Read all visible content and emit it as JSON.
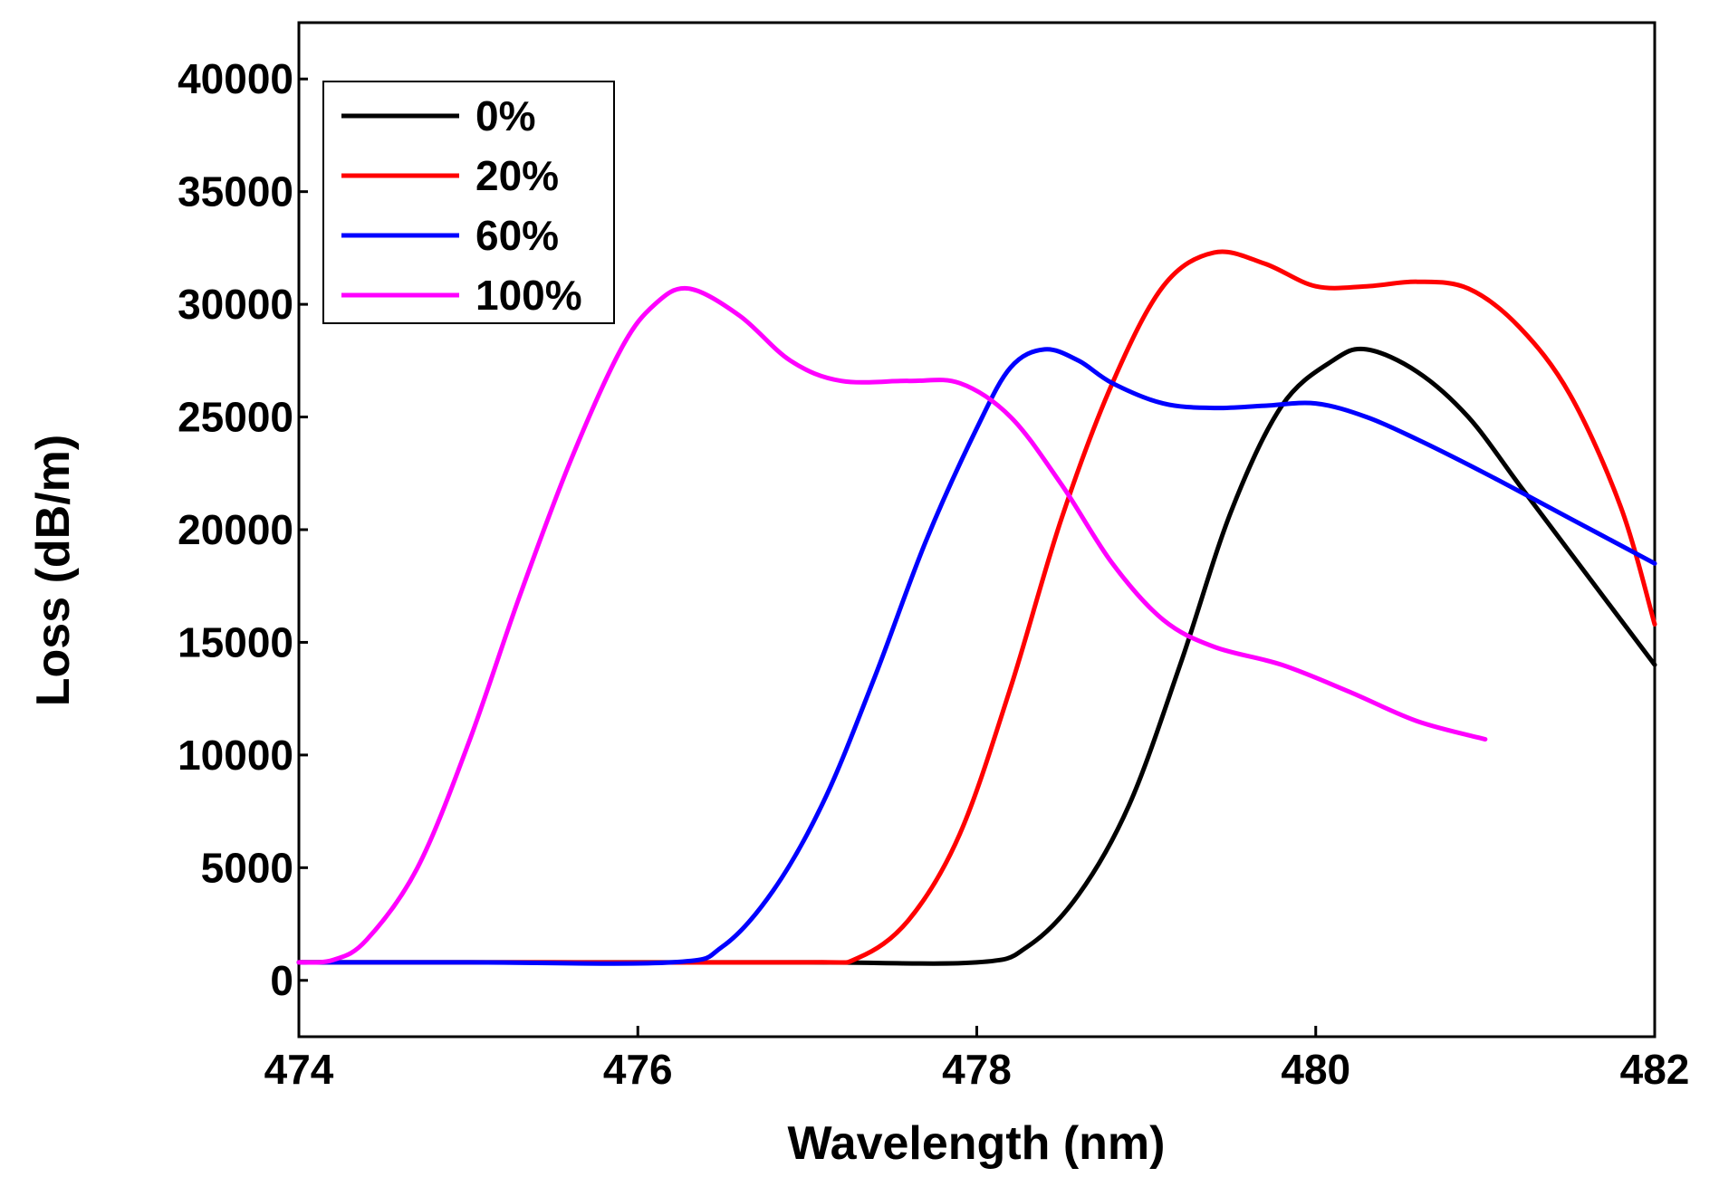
{
  "chart_data": {
    "type": "line",
    "title": "",
    "xlabel": "Wavelength (nm)",
    "ylabel": "Loss (dB/m)",
    "xlim": [
      474,
      482
    ],
    "ylim": [
      -2500,
      42500
    ],
    "xticks": [
      474,
      476,
      478,
      480,
      482
    ],
    "xtick_labels": [
      "474",
      "476",
      "478",
      "480",
      "482"
    ],
    "yticks": [
      0,
      5000,
      10000,
      15000,
      20000,
      25000,
      30000,
      35000,
      40000
    ],
    "ytick_labels": [
      "0",
      "5000",
      "10000",
      "15000",
      "20000",
      "25000",
      "30000",
      "35000",
      "40000"
    ],
    "grid": false,
    "legend_position": "top-left",
    "series": [
      {
        "name": "0%",
        "color": "#000000",
        "x": [
          474.0,
          475.5,
          477.0,
          478.0,
          478.3,
          478.6,
          478.9,
          479.2,
          479.5,
          479.8,
          480.1,
          480.3,
          480.6,
          480.9,
          481.2,
          481.5,
          482.0
        ],
        "y": [
          800,
          800,
          800,
          800,
          1500,
          3800,
          7800,
          14000,
          20800,
          25500,
          27500,
          28000,
          27000,
          25000,
          22000,
          19000,
          14000
        ]
      },
      {
        "name": "20%",
        "color": "#ff0000",
        "x": [
          474.0,
          475.5,
          477.0,
          477.3,
          477.6,
          477.9,
          478.2,
          478.5,
          478.8,
          479.1,
          479.4,
          479.7,
          480.0,
          480.3,
          480.6,
          480.9,
          481.2,
          481.5,
          481.8,
          482.0
        ],
        "y": [
          800,
          800,
          800,
          1000,
          2700,
          6500,
          13000,
          20500,
          26500,
          30800,
          32300,
          31800,
          30800,
          30800,
          31000,
          30700,
          29000,
          26000,
          21000,
          15800
        ]
      },
      {
        "name": "60%",
        "color": "#0000ff",
        "x": [
          474.0,
          475.0,
          476.2,
          476.5,
          476.8,
          477.1,
          477.4,
          477.7,
          478.0,
          478.2,
          478.4,
          478.6,
          478.8,
          479.1,
          479.4,
          479.7,
          480.0,
          480.3,
          480.6,
          481.0,
          481.5,
          482.0
        ],
        "y": [
          800,
          800,
          800,
          1500,
          4000,
          8000,
          13500,
          19500,
          24500,
          27200,
          28000,
          27500,
          26500,
          25600,
          25400,
          25500,
          25600,
          25000,
          24000,
          22500,
          20500,
          18500
        ]
      },
      {
        "name": "100%",
        "color": "#ff00ff",
        "x": [
          474.0,
          474.2,
          474.4,
          474.7,
          475.0,
          475.3,
          475.6,
          475.9,
          476.1,
          476.3,
          476.6,
          476.9,
          477.2,
          477.6,
          477.9,
          478.2,
          478.5,
          478.8,
          479.1,
          479.4,
          479.8,
          480.2,
          480.6,
          481.0
        ],
        "y": [
          800,
          900,
          1800,
          5000,
          10500,
          17000,
          23000,
          28000,
          30000,
          30700,
          29500,
          27500,
          26600,
          26600,
          26500,
          25000,
          22000,
          18500,
          16000,
          14800,
          14000,
          12800,
          11500,
          10700
        ]
      }
    ]
  }
}
